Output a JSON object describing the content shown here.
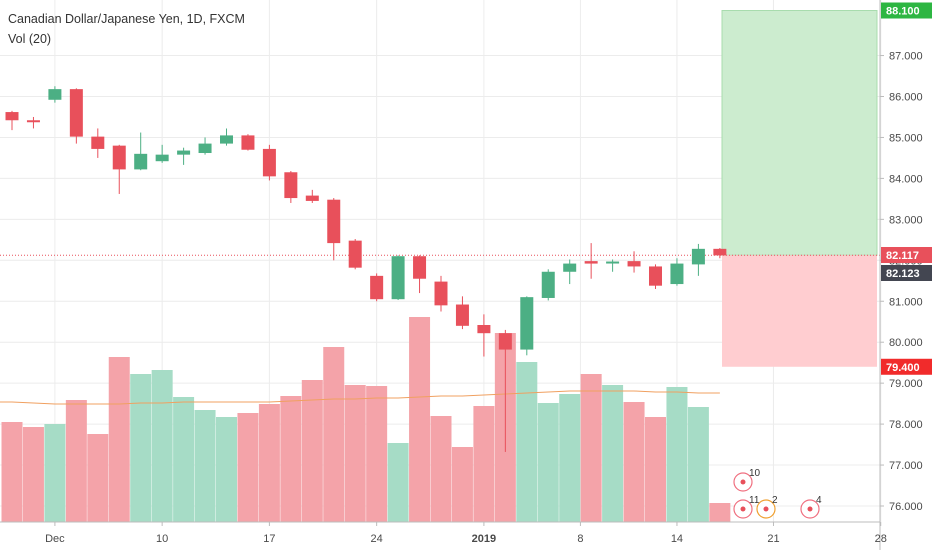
{
  "header": {
    "title": "Canadian Dollar/Japanese Yen, 1D, FXCM",
    "volume_label": "Vol (20)"
  },
  "colors": {
    "up": "#4caf84",
    "down": "#e8505b",
    "vol_up": "#a6dcc6",
    "vol_down": "#f4a3a9",
    "vol_ma": "#f0a060",
    "profit_zone": "#cceccf",
    "loss_zone": "#ffcdd0",
    "grid": "#ececec",
    "target_tag": "#2db642",
    "stop_tag": "#f12b2b",
    "price_tag": "#e8505b",
    "entry_tag": "#434651"
  },
  "chart_data": {
    "type": "candlestick",
    "symbol": "Canadian Dollar/Japanese Yen",
    "interval": "1D",
    "source": "FXCM",
    "ylim": [
      75.6,
      88.3
    ],
    "y_ticks": [
      "76.000",
      "77.000",
      "78.000",
      "79.000",
      "80.000",
      "81.000",
      "82.000",
      "83.000",
      "84.000",
      "85.000",
      "86.000",
      "87.000"
    ],
    "x_ticks": [
      "Dec",
      "10",
      "17",
      "24",
      "2019",
      "8",
      "14",
      "21",
      "28"
    ],
    "x_tick_index": [
      2,
      7,
      12,
      17,
      22,
      26.5,
      31,
      35.5,
      40.5
    ],
    "candles": [
      {
        "o": 85.62,
        "h": 85.65,
        "l": 85.18,
        "c": 85.42
      },
      {
        "o": 85.42,
        "h": 85.5,
        "l": 85.22,
        "c": 85.38
      },
      {
        "o": 85.92,
        "h": 86.25,
        "l": 85.85,
        "c": 86.18
      },
      {
        "o": 86.18,
        "h": 86.2,
        "l": 84.85,
        "c": 85.02
      },
      {
        "o": 85.02,
        "h": 85.22,
        "l": 84.5,
        "c": 84.72
      },
      {
        "o": 84.8,
        "h": 84.82,
        "l": 83.62,
        "c": 84.22
      },
      {
        "o": 84.22,
        "h": 85.12,
        "l": 84.2,
        "c": 84.6
      },
      {
        "o": 84.42,
        "h": 84.82,
        "l": 84.38,
        "c": 84.58
      },
      {
        "o": 84.58,
        "h": 84.75,
        "l": 84.33,
        "c": 84.68
      },
      {
        "o": 84.62,
        "h": 85.0,
        "l": 84.58,
        "c": 84.85
      },
      {
        "o": 84.85,
        "h": 85.22,
        "l": 84.8,
        "c": 85.05
      },
      {
        "o": 85.05,
        "h": 85.08,
        "l": 84.68,
        "c": 84.7
      },
      {
        "o": 84.72,
        "h": 84.82,
        "l": 83.95,
        "c": 84.05
      },
      {
        "o": 84.15,
        "h": 84.18,
        "l": 83.4,
        "c": 83.52
      },
      {
        "o": 83.58,
        "h": 83.72,
        "l": 83.4,
        "c": 83.45
      },
      {
        "o": 83.48,
        "h": 83.52,
        "l": 82.0,
        "c": 82.42
      },
      {
        "o": 82.48,
        "h": 82.52,
        "l": 81.78,
        "c": 81.82
      },
      {
        "o": 81.62,
        "h": 81.68,
        "l": 81.0,
        "c": 81.05
      },
      {
        "o": 81.05,
        "h": 82.12,
        "l": 81.03,
        "c": 82.1
      },
      {
        "o": 82.1,
        "h": 82.12,
        "l": 81.2,
        "c": 81.55
      },
      {
        "o": 81.48,
        "h": 81.62,
        "l": 80.75,
        "c": 80.9
      },
      {
        "o": 80.92,
        "h": 81.12,
        "l": 80.32,
        "c": 80.4
      },
      {
        "o": 80.42,
        "h": 80.68,
        "l": 79.65,
        "c": 80.22
      },
      {
        "o": 80.22,
        "h": 80.3,
        "l": 77.32,
        "c": 79.82
      },
      {
        "o": 79.82,
        "h": 81.12,
        "l": 79.68,
        "c": 81.1
      },
      {
        "o": 81.08,
        "h": 81.78,
        "l": 81.02,
        "c": 81.72
      },
      {
        "o": 81.72,
        "h": 82.02,
        "l": 81.42,
        "c": 81.92
      },
      {
        "o": 81.98,
        "h": 82.42,
        "l": 81.55,
        "c": 81.92
      },
      {
        "o": 81.95,
        "h": 82.02,
        "l": 81.72,
        "c": 81.97
      },
      {
        "o": 81.98,
        "h": 82.22,
        "l": 81.7,
        "c": 81.85
      },
      {
        "o": 81.85,
        "h": 81.9,
        "l": 81.3,
        "c": 81.38
      },
      {
        "o": 81.42,
        "h": 82.05,
        "l": 81.38,
        "c": 81.92
      },
      {
        "o": 81.9,
        "h": 82.4,
        "l": 81.62,
        "c": 82.28
      },
      {
        "o": 82.28,
        "h": 82.3,
        "l": 82.05,
        "c": 82.12
      }
    ],
    "volume": {
      "ylim": [
        0,
        260
      ],
      "values": [
        100,
        95,
        98,
        122,
        88,
        165,
        148,
        152,
        125,
        112,
        105,
        109,
        118,
        126,
        142,
        175,
        137,
        136,
        79,
        205,
        106,
        75,
        116,
        189,
        160,
        119,
        128,
        148,
        137,
        120,
        105,
        135,
        115,
        19
      ],
      "direction": [
        "down",
        "down",
        "up",
        "down",
        "down",
        "down",
        "up",
        "up",
        "up",
        "up",
        "up",
        "down",
        "down",
        "down",
        "down",
        "down",
        "down",
        "down",
        "up",
        "down",
        "down",
        "down",
        "down",
        "down",
        "up",
        "up",
        "up",
        "down",
        "up",
        "down",
        "down",
        "up",
        "up",
        "down"
      ],
      "ma": [
        120,
        119,
        118,
        118,
        118,
        118,
        119,
        119,
        120,
        120,
        120,
        120,
        120,
        121,
        122,
        123,
        123,
        124,
        124,
        125,
        126,
        126,
        127,
        128,
        129,
        130,
        131,
        131,
        131,
        131,
        130,
        130,
        129,
        129
      ]
    },
    "position": {
      "target": 88.1,
      "stop": 79.4,
      "entry": 82.123
    },
    "price_tags": {
      "target": "88.100",
      "current": "82.117",
      "entry": "82.123",
      "stop": "79.400"
    },
    "events": [
      "10",
      "11",
      "2",
      "4"
    ]
  }
}
